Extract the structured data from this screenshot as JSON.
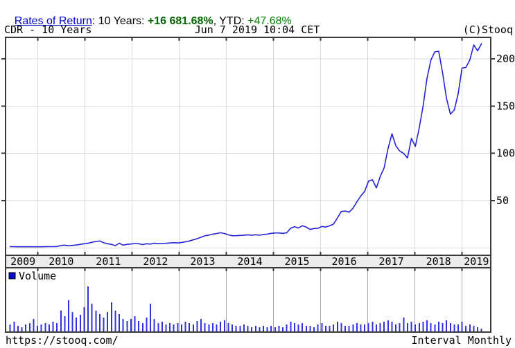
{
  "header": {
    "link_label": "Rates of Return",
    "text_before_value": ": 10 Years: ",
    "ten_year_return": "+16 681.68%",
    "text_between": ", YTD: ",
    "ytd_return": "+47.68%"
  },
  "colors": {
    "link_blue": "#0000cc",
    "return_green_bold": "#006600",
    "return_green": "#008000",
    "price_line_blue": "#2323d7",
    "volume_bar_blue": "#3232dd",
    "legend_square_blue": "#0a0acc",
    "grid_light": "#d9d9d9",
    "grid_volume": "#a8a8a8",
    "border_dark": "#3a3a3a",
    "band_bg": "#ececec",
    "text_black": "#000000"
  },
  "chart_data": {
    "type": "line",
    "symbol": "CDR",
    "title": "CDR - 10 Years",
    "timestamp": "Jun 7 2019 10:04 CET",
    "copyright": "(C)Stooq",
    "interval": "monthly",
    "start_month": "2009-06",
    "end_date": "2019-06-07",
    "legend": "Volume",
    "x_tick_years": [
      "2009",
      "2010",
      "2011",
      "2012",
      "2013",
      "2014",
      "2015",
      "2016",
      "2017",
      "2018",
      "2019"
    ],
    "y_ticks": [
      50,
      100,
      150,
      200
    ],
    "y_axis_range_visible": [
      0,
      220
    ],
    "grid": true,
    "price_monthly_close": [
      1.3,
      1.25,
      1.2,
      1.2,
      1.15,
      1.15,
      1.2,
      1.2,
      1.2,
      1.25,
      1.3,
      1.35,
      1.5,
      2.5,
      2.9,
      2.2,
      2.6,
      3.1,
      3.7,
      4.4,
      4.9,
      5.9,
      6.8,
      7.3,
      5.4,
      4.4,
      3.7,
      2.4,
      4.9,
      2.9,
      3.7,
      4.1,
      4.6,
      4.4,
      3.5,
      4.4,
      4.0,
      4.9,
      4.4,
      4.6,
      4.9,
      5.2,
      5.5,
      5.2,
      5.8,
      6.4,
      7.3,
      8.5,
      9.7,
      11.3,
      12.9,
      13.5,
      14.6,
      15.2,
      16.0,
      15.2,
      13.8,
      12.9,
      12.9,
      13.2,
      13.5,
      13.8,
      13.5,
      13.9,
      13.4,
      14.2,
      14.6,
      15.4,
      15.8,
      15.8,
      15.4,
      16.0,
      20.7,
      22.5,
      21.0,
      23.5,
      22.0,
      19.5,
      20.5,
      20.7,
      22.7,
      22.0,
      23.5,
      25.1,
      31.7,
      38.5,
      39.0,
      37.8,
      42.0,
      48.8,
      54.9,
      59.7,
      70.7,
      72.0,
      63.4,
      75.6,
      84.6,
      105.0,
      120.8,
      108.0,
      102.5,
      100.0,
      95.2,
      115.9,
      107.3,
      126.9,
      150.0,
      179.3,
      198.8,
      207.4,
      208.1,
      185.4,
      158.6,
      141.5,
      146.0,
      163.0,
      190.3,
      191.0,
      199.0,
      214.7,
      208.6,
      216.0
    ],
    "volume_relative": [
      10,
      14,
      8,
      6,
      10,
      12,
      18,
      8,
      10,
      12,
      10,
      14,
      12,
      30,
      22,
      45,
      28,
      20,
      24,
      35,
      65,
      40,
      30,
      25,
      20,
      28,
      42,
      30,
      25,
      18,
      15,
      18,
      22,
      15,
      12,
      20,
      40,
      18,
      12,
      14,
      10,
      12,
      10,
      12,
      10,
      14,
      12,
      10,
      15,
      18,
      12,
      10,
      12,
      10,
      14,
      16,
      12,
      10,
      8,
      8,
      10,
      8,
      6,
      8,
      6,
      8,
      6,
      8,
      6,
      8,
      6,
      10,
      14,
      12,
      10,
      12,
      8,
      8,
      6,
      10,
      12,
      8,
      8,
      10,
      14,
      12,
      8,
      8,
      10,
      12,
      10,
      10,
      12,
      14,
      10,
      12,
      14,
      16,
      14,
      10,
      12,
      20,
      12,
      14,
      10,
      12,
      14,
      16,
      12,
      10,
      14,
      12,
      16,
      12,
      10,
      10,
      14,
      8,
      10,
      8,
      6,
      4
    ]
  },
  "footer": {
    "url": "https://stooq.com/",
    "interval_label": "Interval Monthly"
  }
}
